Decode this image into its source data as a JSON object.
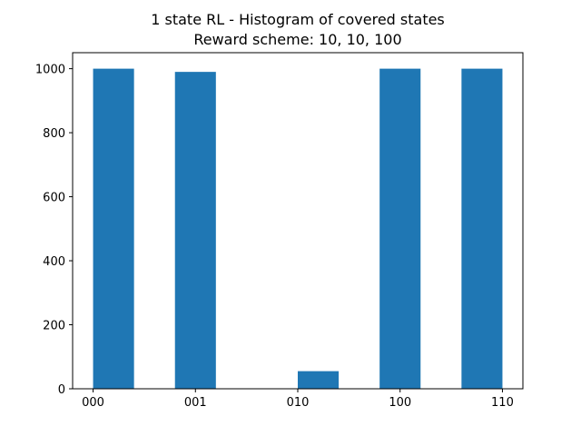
{
  "chart_data": {
    "type": "bar",
    "title": "1 state RL - Histogram of covered states",
    "subtitle": "Reward scheme: 10, 10, 100",
    "xlabel": "",
    "ylabel": "",
    "bars": [
      {
        "x_start": 0.0,
        "x_end": 0.4,
        "value": 1000
      },
      {
        "x_start": 0.8,
        "x_end": 1.2,
        "value": 990
      },
      {
        "x_start": 2.0,
        "x_end": 2.4,
        "value": 55
      },
      {
        "x_start": 2.8,
        "x_end": 3.2,
        "value": 1000
      },
      {
        "x_start": 3.6,
        "x_end": 4.0,
        "value": 1000
      }
    ],
    "x_ticks": [
      {
        "value": 0,
        "label": "000"
      },
      {
        "value": 1,
        "label": "001"
      },
      {
        "value": 2,
        "label": "010"
      },
      {
        "value": 3,
        "label": "100"
      },
      {
        "value": 4,
        "label": "110"
      }
    ],
    "y_ticks": [
      0,
      200,
      400,
      600,
      800,
      1000
    ],
    "xlim": [
      -0.2,
      4.2
    ],
    "ylim": [
      0,
      1050
    ],
    "grid": false,
    "bar_color": "#1f77b4"
  }
}
